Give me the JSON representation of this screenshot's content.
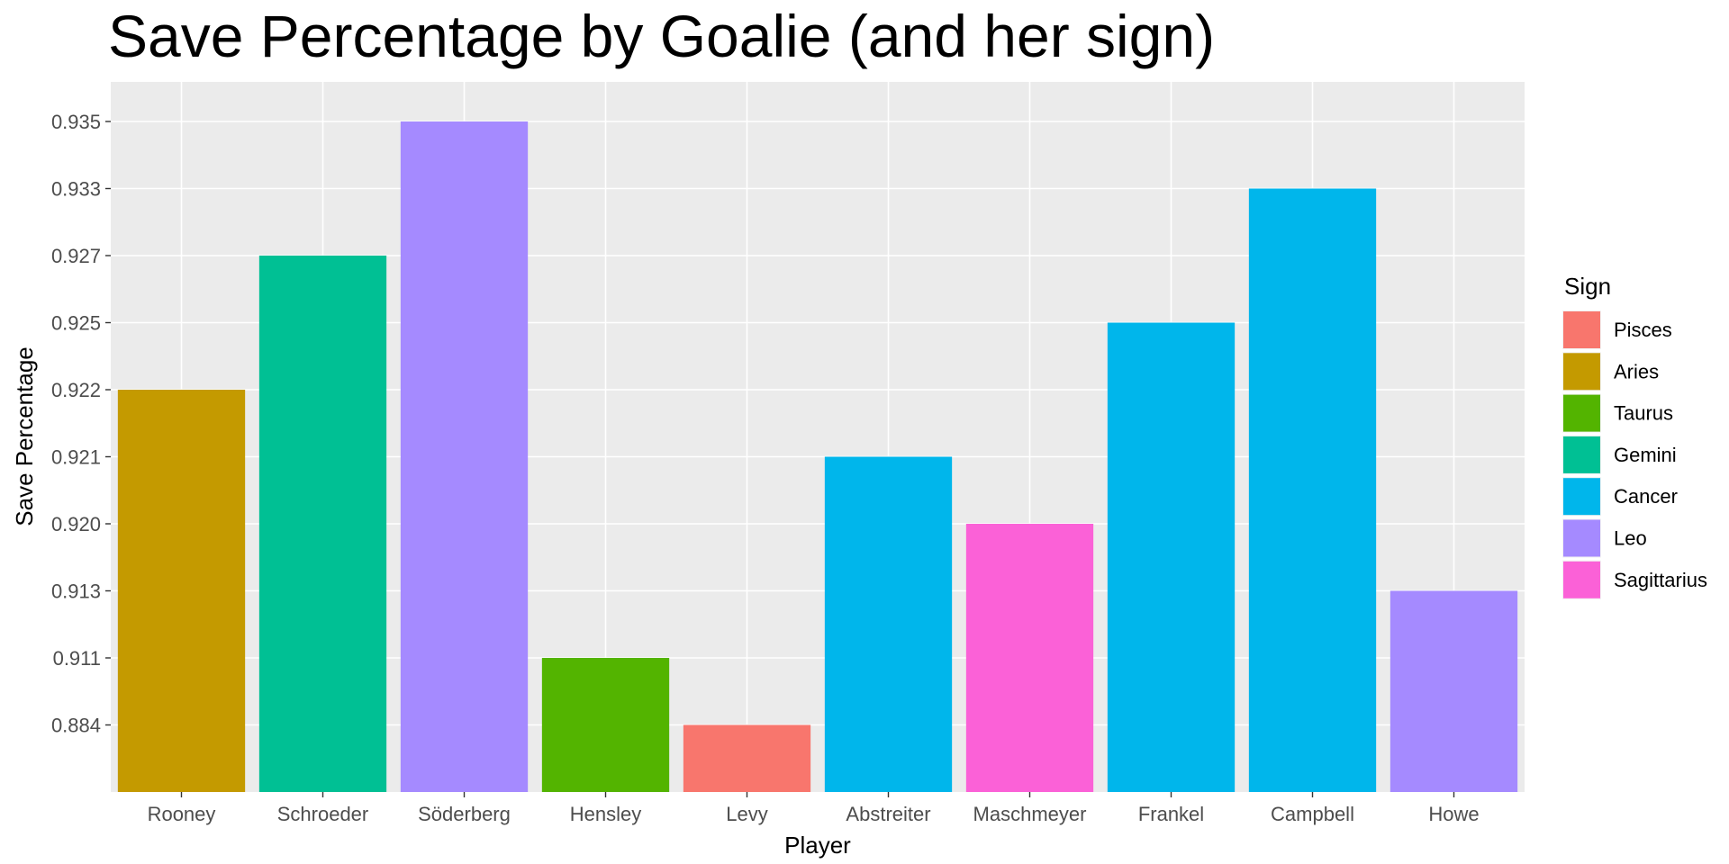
{
  "chart_data": {
    "type": "bar",
    "title": "Save Percentage by Goalie (and her sign)",
    "xlabel": "Player",
    "ylabel": "Save Percentage",
    "y_scale": "discrete",
    "y_tick_labels": [
      "0.884",
      "0.911",
      "0.913",
      "0.920",
      "0.921",
      "0.922",
      "0.925",
      "0.927",
      "0.933",
      "0.935"
    ],
    "categories": [
      "Rooney",
      "Schroeder",
      "Söderberg",
      "Hensley",
      "Levy",
      "Abstreiter",
      "Maschmeyer",
      "Frankel",
      "Campbell",
      "Howe"
    ],
    "values": [
      "0.922",
      "0.927",
      "0.935",
      "0.911",
      "0.884",
      "0.921",
      "0.920",
      "0.925",
      "0.933",
      "0.913"
    ],
    "fill_by": [
      "Aries",
      "Gemini",
      "Leo",
      "Taurus",
      "Pisces",
      "Cancer",
      "Sagittarius",
      "Cancer",
      "Cancer",
      "Leo"
    ],
    "legend": {
      "title": "Sign",
      "placement": "right",
      "items": [
        {
          "label": "Pisces",
          "color": "#F8766D"
        },
        {
          "label": "Aries",
          "color": "#C49A00"
        },
        {
          "label": "Taurus",
          "color": "#53B400"
        },
        {
          "label": "Gemini",
          "color": "#00C094"
        },
        {
          "label": "Cancer",
          "color": "#00B6EB"
        },
        {
          "label": "Leo",
          "color": "#A58AFF"
        },
        {
          "label": "Sagittarius",
          "color": "#FB61D7"
        }
      ]
    },
    "grid": true,
    "panel_background": "#EBEBEB",
    "grid_color": "#FFFFFF"
  }
}
